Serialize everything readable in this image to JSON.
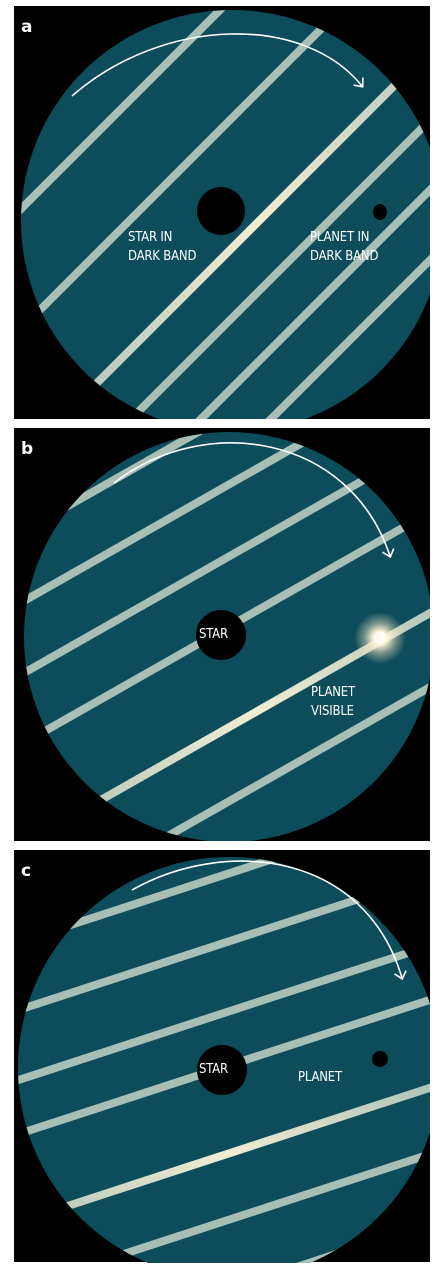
{
  "panels": [
    {
      "letter": "a",
      "star_label": [
        "STAR IN",
        "DARK BAND"
      ],
      "planet_label": [
        "PLANET IN",
        "DARK BAND"
      ]
    },
    {
      "letter": "b",
      "star_label": [
        "STAR"
      ],
      "planet_label": [
        "PLANET",
        "VISIBLE"
      ]
    },
    {
      "letter": "c",
      "star_label": [
        "STAR"
      ],
      "planet_label": [
        "PLANET"
      ]
    }
  ],
  "colors": {
    "disc": "#0d4c5a",
    "stripe": "#a8bfb6",
    "stripe_bright": "#ece8cc",
    "background": "#000000",
    "star": "#000000",
    "planet_glow": "#fff6d8"
  }
}
